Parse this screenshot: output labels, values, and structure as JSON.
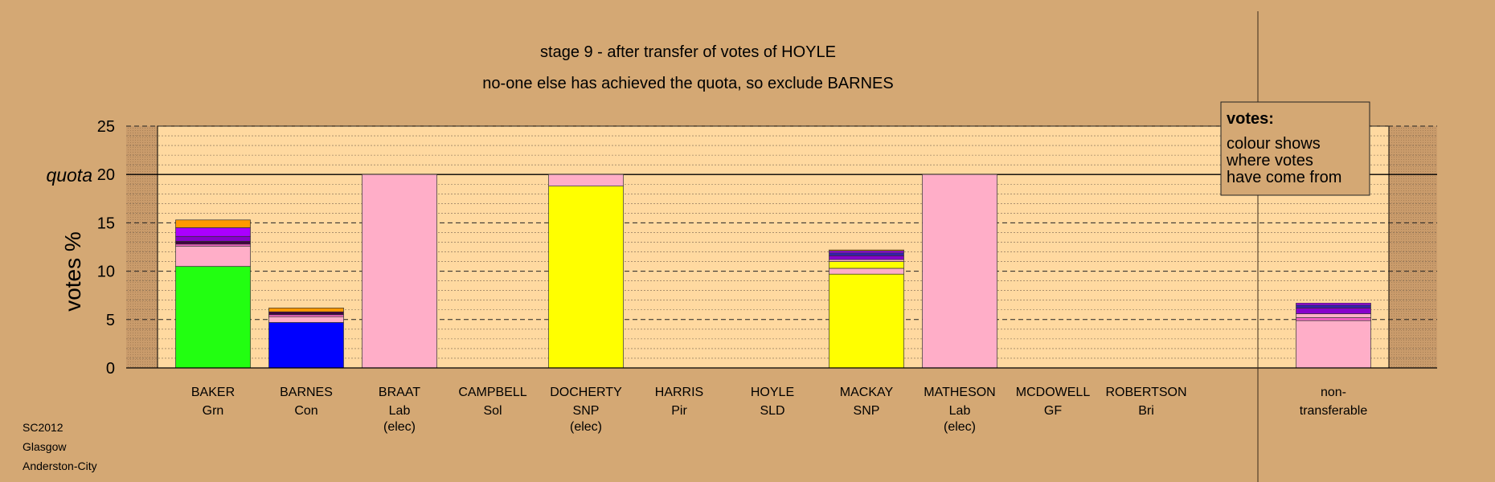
{
  "chart_data": {
    "type": "bar",
    "stacked": true,
    "title": "stage 9 - after transfer of votes of HOYLE",
    "subtitle": "no-one else has achieved the quota, so exclude BARNES",
    "ylabel": "votes %",
    "ylim": [
      0,
      25
    ],
    "yticks": [
      "0",
      "5",
      "10",
      "15",
      "20",
      "25"
    ],
    "quota_label": "quota",
    "quota": 20,
    "categories": [
      {
        "name": "BAKER",
        "party": "Grn",
        "note": ""
      },
      {
        "name": "BARNES",
        "party": "Con",
        "note": ""
      },
      {
        "name": "BRAAT",
        "party": "Lab",
        "note": "(elec)"
      },
      {
        "name": "CAMPBELL",
        "party": "Sol",
        "note": ""
      },
      {
        "name": "DOCHERTY",
        "party": "SNP",
        "note": "(elec)"
      },
      {
        "name": "HARRIS",
        "party": "Pir",
        "note": ""
      },
      {
        "name": "HOYLE",
        "party": "SLD",
        "note": ""
      },
      {
        "name": "MACKAY",
        "party": "SNP",
        "note": ""
      },
      {
        "name": "MATHESON",
        "party": "Lab",
        "note": "(elec)"
      },
      {
        "name": "MCDOWELL",
        "party": "GF",
        "note": ""
      },
      {
        "name": "ROBERTSON",
        "party": "Bri",
        "note": ""
      },
      {
        "name": "non-",
        "party": "transferable",
        "note": ""
      }
    ],
    "series_colors": {
      "Grn": "#22ff11",
      "Con": "#0000ff",
      "Lab": "#ffaec8",
      "SNP": "#ffff00",
      "Pir": "#400040",
      "SLD": "#ff9900",
      "Sol": "#ff66cc",
      "GF": "#8800cc",
      "Bri": "#aa00ff",
      "Other": "#3322aa"
    },
    "stacks": [
      [
        [
          "Grn",
          10.5
        ],
        [
          "Lab",
          2.1
        ],
        [
          "Sol",
          0.2
        ],
        [
          "Pir",
          0.3
        ],
        [
          "GF",
          0.5
        ],
        [
          "Bri",
          0.9
        ],
        [
          "SLD",
          0.8
        ]
      ],
      [
        [
          "Con",
          4.7
        ],
        [
          "Lab",
          0.6
        ],
        [
          "Sol",
          0.2
        ],
        [
          "Pir",
          0.3
        ],
        [
          "SLD",
          0.4
        ]
      ],
      [
        [
          "Lab",
          20
        ]
      ],
      [],
      [
        [
          "SNP",
          18.8
        ],
        [
          "Lab",
          1.2
        ]
      ],
      [],
      [],
      [
        [
          "SNP",
          9.7
        ],
        [
          "Lab",
          0.6
        ],
        [
          "SNP",
          0.7
        ],
        [
          "Lab",
          0.2
        ],
        [
          "GF",
          0.4
        ],
        [
          "Other",
          0.3
        ],
        [
          "Bri",
          0.2
        ],
        [
          "SLD",
          0.1
        ]
      ],
      [
        [
          "Lab",
          20
        ]
      ],
      [],
      [],
      [
        [
          "Lab",
          4.9
        ],
        [
          "Sol",
          0.3
        ],
        [
          "Lab",
          0.4
        ],
        [
          "GF",
          0.6
        ],
        [
          "Other",
          0.3
        ],
        [
          "Bri",
          0.2
        ]
      ]
    ],
    "legend": {
      "title": "votes:",
      "lines": [
        "colour shows",
        "where votes",
        "have come from"
      ]
    }
  },
  "footer": {
    "lines": [
      "SC2012",
      "Glasgow",
      "Anderston-City"
    ]
  },
  "colors": {
    "background": "#d4a874",
    "plot_area": "#ffd9a0",
    "plot_shade": "#c69a6c"
  }
}
